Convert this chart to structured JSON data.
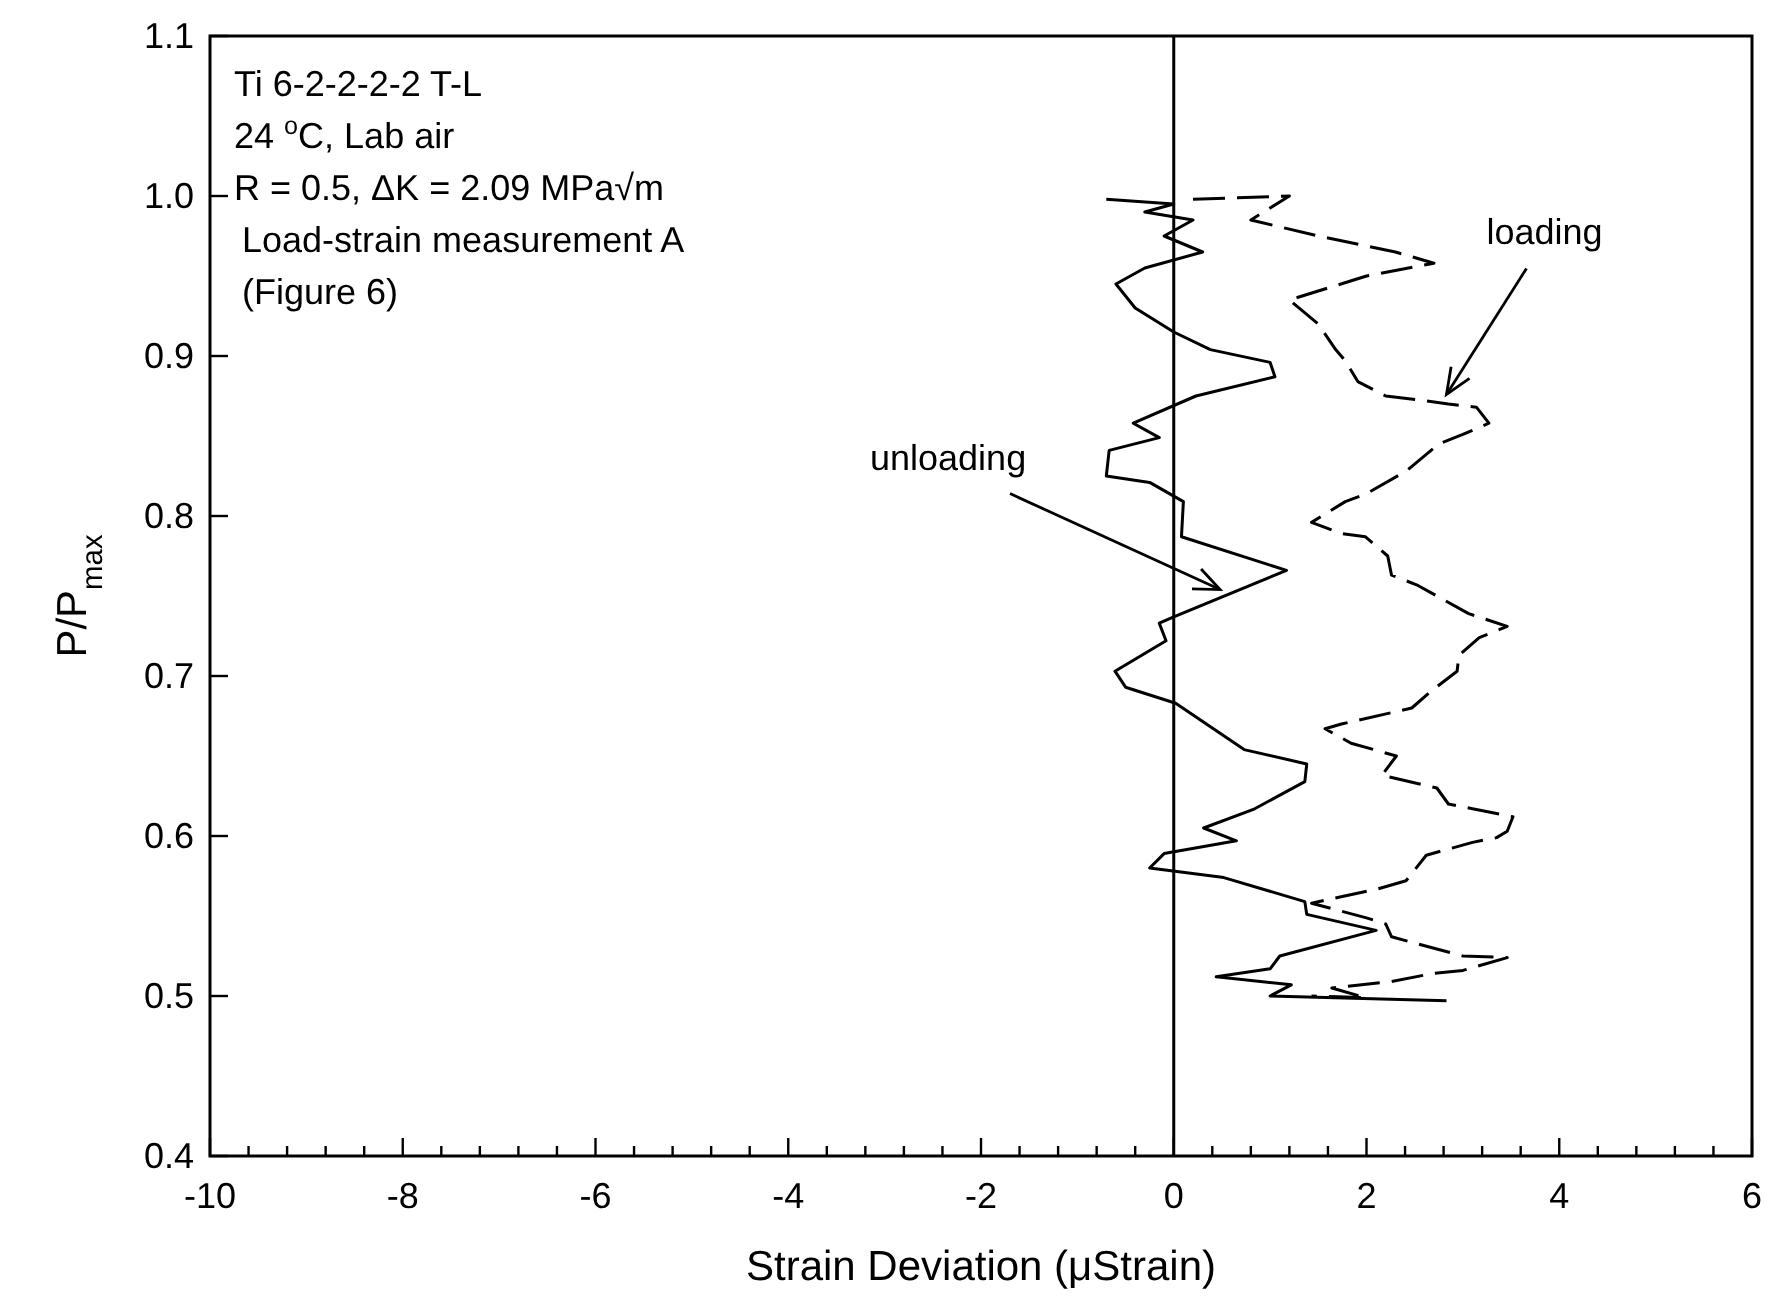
{
  "chart_data": {
    "type": "line",
    "xlabel": "Strain Deviation (μStrain)",
    "ylabel": "P/P$_{max}$",
    "xlim": [
      -10,
      6
    ],
    "ylim": [
      0.4,
      1.1
    ],
    "xticks": [
      -10,
      {
        "value": -9.6,
        "label": null
      },
      {
        "value": -9.2,
        "label": null
      },
      {
        "value": -8.8,
        "label": null
      },
      {
        "value": -8.4,
        "label": null
      },
      -8,
      {
        "value": -7.6,
        "label": null
      },
      {
        "value": -7.2,
        "label": null
      },
      {
        "value": -6.8,
        "label": null
      },
      {
        "value": -6.4,
        "label": null
      },
      -6,
      {
        "value": -5.6,
        "label": null
      },
      {
        "value": -5.2,
        "label": null
      },
      {
        "value": -4.8,
        "label": null
      },
      {
        "value": -4.4,
        "label": null
      },
      -4,
      {
        "value": -3.6,
        "label": null
      },
      {
        "value": -3.2,
        "label": null
      },
      {
        "value": -2.8,
        "label": null
      },
      {
        "value": -2.4,
        "label": null
      },
      -2,
      {
        "value": -1.6,
        "label": null
      },
      {
        "value": -1.2,
        "label": null
      },
      {
        "value": -0.8,
        "label": null
      },
      {
        "value": -0.4,
        "label": null
      },
      0,
      {
        "value": 0.4,
        "label": null
      },
      {
        "value": 0.8,
        "label": null
      },
      {
        "value": 1.2,
        "label": null
      },
      {
        "value": 1.6,
        "label": null
      },
      2,
      {
        "value": 2.4,
        "label": null
      },
      {
        "value": 2.8,
        "label": null
      },
      {
        "value": 3.2,
        "label": null
      },
      {
        "value": 3.6,
        "label": null
      },
      4,
      {
        "value": 4.4,
        "label": null
      },
      {
        "value": 4.8,
        "label": null
      },
      {
        "value": 5.2,
        "label": null
      },
      {
        "value": 5.6,
        "label": null
      },
      6
    ],
    "yticks": [
      0.4,
      0.5,
      0.6,
      0.7,
      0.8,
      0.9,
      {
        "value": 1.0,
        "label": "1.0"
      },
      1.1
    ],
    "grid": false,
    "ref_lines": [
      {
        "axis": "x",
        "value": 0,
        "color": "#000000"
      }
    ],
    "annotations": [
      "Ti 6-2-2-2-2 T-L",
      "24 $^{o}$C, Lab air",
      "R = 0.5, ΔK = 2.09 MPa√m",
      "Load-strain measurement A",
      "(Figure 6)",
      {
        "text": "unloading",
        "x": 0.48,
        "y": 0.754
      },
      {
        "text": "loading",
        "x": 2.83,
        "y": 0.876
      }
    ],
    "series": [
      {
        "color": "#000000",
        "line_style": "solid",
        "x": [
          -0.7,
          0.0,
          -0.3,
          0.2,
          -0.1,
          0.3,
          -0.3,
          -0.6,
          -0.4,
          0.0,
          0.38,
          1.0,
          1.05,
          0.23,
          -0.42,
          -0.15,
          -0.67,
          -0.7,
          -0.25,
          0.1,
          0.08,
          1.17,
          0,
          -0.15,
          -0.08,
          -0.61,
          -0.5,
          0.02,
          0.73,
          1.38,
          1.36,
          0.84,
          0.31,
          0.65,
          -0.1,
          -0.25,
          0.52,
          1.36,
          1.38,
          2.1,
          1.1,
          1.0,
          0.44,
          1.22,
          1.0,
          2.83
        ],
        "values": [
          0.998,
          0.995,
          0.99,
          0.985,
          0.975,
          0.965,
          0.955,
          0.945,
          0.93,
          0.915,
          0.904,
          0.896,
          0.887,
          0.875,
          0.858,
          0.849,
          0.841,
          0.825,
          0.821,
          0.809,
          0.787,
          0.766,
          0.737,
          0.733,
          0.722,
          0.703,
          0.693,
          0.683,
          0.654,
          0.645,
          0.634,
          0.617,
          0.605,
          0.597,
          0.589,
          0.58,
          0.574,
          0.559,
          0.551,
          0.541,
          0.525,
          0.517,
          0.512,
          0.507,
          0.5,
          0.497
        ]
      },
      {
        "color": "#000000",
        "line_style": "dashed",
        "x": [
          0.2,
          1.2,
          0.8,
          1.5,
          2.3,
          2.7,
          2.0,
          1.2,
          1.5,
          1.68,
          1.78,
          1.91,
          2.2,
          2.62,
          2.85,
          3.14,
          3.27,
          3.0,
          2.75,
          2.41,
          2.0,
          1.78,
          1.43,
          1.74,
          1.99,
          2.22,
          2.26,
          2.52,
          2.73,
          3.06,
          3.46,
          3.17,
          2.96,
          2.94,
          2.68,
          2.47,
          1.74,
          1.57,
          1.84,
          2.31,
          2.16,
          2.73,
          2.85,
          3.1,
          3.52,
          3.46,
          3.35,
          3.1,
          2.62,
          2.41,
          2.12,
          1.43,
          1.99,
          2.2,
          2.26,
          3.0,
          3.46,
          3.0,
          2.68,
          2.26,
          1.64,
          1.99,
          1.43
        ],
        "values": [
          0.998,
          1.0,
          0.985,
          0.975,
          0.965,
          0.958,
          0.95,
          0.935,
          0.92,
          0.904,
          0.897,
          0.884,
          0.875,
          0.872,
          0.87,
          0.868,
          0.858,
          0.851,
          0.845,
          0.828,
          0.814,
          0.809,
          0.796,
          0.789,
          0.787,
          0.775,
          0.763,
          0.757,
          0.75,
          0.739,
          0.731,
          0.724,
          0.713,
          0.703,
          0.691,
          0.68,
          0.67,
          0.667,
          0.658,
          0.65,
          0.638,
          0.63,
          0.62,
          0.617,
          0.612,
          0.603,
          0.599,
          0.596,
          0.588,
          0.572,
          0.567,
          0.558,
          0.549,
          0.545,
          0.537,
          0.525,
          0.524,
          0.516,
          0.514,
          0.509,
          0.505,
          0.499,
          0.5
        ]
      }
    ]
  }
}
